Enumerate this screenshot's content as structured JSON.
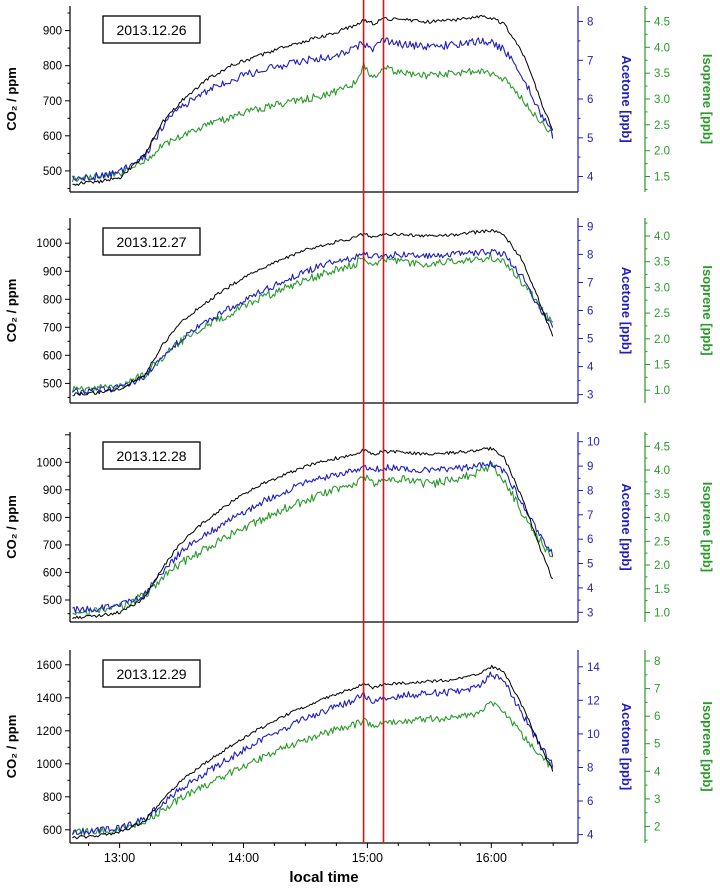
{
  "figure": {
    "xlabel": "local time",
    "x_domain": [
      12.6,
      16.7
    ],
    "x_ticks": [
      {
        "v": 13,
        "label": "13:00"
      },
      {
        "v": 14,
        "label": "14:00"
      },
      {
        "v": 15,
        "label": "15:00"
      },
      {
        "v": 16,
        "label": "16:00"
      }
    ],
    "red_lines_x": [
      14.97,
      15.13
    ],
    "colors": {
      "co2": "#000000",
      "acetone": "#1f1fc0",
      "isoprene": "#2a9a2a",
      "red_line": "#e01212"
    }
  },
  "chart_data": [
    {
      "type": "line",
      "date_label": "2013.12.26",
      "x_hours": [
        12.62,
        12.8,
        13.0,
        13.2,
        13.35,
        13.5,
        13.7,
        13.9,
        14.1,
        14.3,
        14.5,
        14.7,
        14.9,
        14.97,
        15.05,
        15.13,
        15.3,
        15.5,
        15.7,
        15.9,
        16.0,
        16.1,
        16.25,
        16.4,
        16.5
      ],
      "axes": {
        "co2": {
          "label": "CO₂ / ppm",
          "domain": [
            440,
            970
          ],
          "tick_start": 500,
          "tick_end": 900,
          "tick_step": 100,
          "decimals": 0
        },
        "acetone": {
          "label": "Acetone [ppb]",
          "domain": [
            3.6,
            8.4
          ],
          "tick_start": 4,
          "tick_end": 8,
          "tick_step": 1,
          "decimals": 0
        },
        "isoprene": {
          "label": "Isoprene [ppb]",
          "domain": [
            1.2,
            4.8
          ],
          "tick_start": 1.5,
          "tick_end": 4.5,
          "tick_step": 0.5,
          "decimals": 1
        }
      },
      "series": {
        "co2": {
          "values": [
            462,
            468,
            480,
            545,
            640,
            700,
            760,
            800,
            825,
            850,
            870,
            890,
            915,
            930,
            920,
            935,
            930,
            925,
            930,
            940,
            935,
            920,
            840,
            700,
            610
          ],
          "noise": 5
        },
        "acetone": {
          "values": [
            3.95,
            4.0,
            4.1,
            4.5,
            5.3,
            5.8,
            6.2,
            6.5,
            6.7,
            6.85,
            7.0,
            7.1,
            7.3,
            7.45,
            7.3,
            7.5,
            7.4,
            7.35,
            7.4,
            7.5,
            7.45,
            7.3,
            6.6,
            5.6,
            5.05
          ],
          "noise": 0.1
        },
        "isoprene": {
          "values": [
            1.45,
            1.5,
            1.55,
            1.8,
            2.1,
            2.3,
            2.5,
            2.65,
            2.8,
            2.9,
            3.0,
            3.1,
            3.3,
            3.65,
            3.4,
            3.6,
            3.5,
            3.45,
            3.5,
            3.55,
            3.5,
            3.4,
            3.0,
            2.55,
            2.3
          ],
          "noise": 0.07
        }
      }
    },
    {
      "type": "line",
      "date_label": "2013.12.27",
      "x_hours": [
        12.62,
        12.8,
        13.0,
        13.2,
        13.35,
        13.5,
        13.7,
        13.9,
        14.1,
        14.3,
        14.5,
        14.7,
        14.9,
        14.97,
        15.05,
        15.13,
        15.3,
        15.5,
        15.7,
        15.9,
        16.0,
        16.1,
        16.25,
        16.4,
        16.5
      ],
      "axes": {
        "co2": {
          "label": "CO₂ / ppm",
          "domain": [
            430,
            1090
          ],
          "tick_start": 500,
          "tick_end": 1000,
          "tick_step": 100,
          "decimals": 0
        },
        "acetone": {
          "label": "Acetone [ppb]",
          "domain": [
            2.7,
            9.3
          ],
          "tick_start": 3,
          "tick_end": 9,
          "tick_step": 1,
          "decimals": 0
        },
        "isoprene": {
          "label": "Isoprene [ppb]",
          "domain": [
            0.75,
            4.35
          ],
          "tick_start": 1.0,
          "tick_end": 4.0,
          "tick_step": 0.5,
          "decimals": 1
        }
      },
      "series": {
        "co2": {
          "values": [
            462,
            466,
            478,
            530,
            640,
            720,
            790,
            850,
            900,
            940,
            975,
            1000,
            1020,
            1035,
            1020,
            1030,
            1030,
            1025,
            1030,
            1040,
            1045,
            1030,
            940,
            780,
            660
          ],
          "noise": 6
        },
        "acetone": {
          "values": [
            3.1,
            3.15,
            3.25,
            3.6,
            4.4,
            5.0,
            5.6,
            6.1,
            6.6,
            7.0,
            7.4,
            7.7,
            7.9,
            8.05,
            7.9,
            8.0,
            8.0,
            7.95,
            8.0,
            8.05,
            8.1,
            8.0,
            7.2,
            6.0,
            5.35
          ],
          "noise": 0.12
        },
        "isoprene": {
          "values": [
            1.0,
            1.03,
            1.1,
            1.3,
            1.65,
            1.95,
            2.25,
            2.5,
            2.75,
            2.95,
            3.15,
            3.3,
            3.45,
            3.6,
            3.45,
            3.55,
            3.5,
            3.45,
            3.5,
            3.55,
            3.6,
            3.5,
            3.1,
            2.6,
            2.3
          ],
          "noise": 0.08
        }
      }
    },
    {
      "type": "line",
      "date_label": "2013.12.28",
      "x_hours": [
        12.62,
        12.8,
        13.0,
        13.2,
        13.35,
        13.5,
        13.7,
        13.9,
        14.1,
        14.3,
        14.5,
        14.7,
        14.9,
        14.97,
        15.05,
        15.13,
        15.3,
        15.5,
        15.7,
        15.9,
        16.0,
        16.1,
        16.25,
        16.4,
        16.5
      ],
      "axes": {
        "co2": {
          "label": "CO₂ / ppm",
          "domain": [
            420,
            1110
          ],
          "tick_start": 500,
          "tick_end": 1000,
          "tick_step": 100,
          "decimals": 0
        },
        "acetone": {
          "label": "Acetone [ppb]",
          "domain": [
            2.6,
            10.4
          ],
          "tick_start": 3,
          "tick_end": 10,
          "tick_step": 1,
          "decimals": 0
        },
        "isoprene": {
          "label": "Isoprene [ppb]",
          "domain": [
            0.8,
            4.8
          ],
          "tick_start": 1.0,
          "tick_end": 4.5,
          "tick_step": 0.5,
          "decimals": 1
        }
      },
      "series": {
        "co2": {
          "values": [
            435,
            440,
            455,
            505,
            620,
            710,
            790,
            855,
            910,
            950,
            985,
            1010,
            1030,
            1045,
            1030,
            1040,
            1035,
            1030,
            1035,
            1045,
            1050,
            1020,
            870,
            680,
            570
          ],
          "noise": 6
        },
        "acetone": {
          "values": [
            3.1,
            3.15,
            3.3,
            3.7,
            4.7,
            5.5,
            6.2,
            6.8,
            7.4,
            7.9,
            8.3,
            8.6,
            8.85,
            9.0,
            8.85,
            8.95,
            8.9,
            8.85,
            8.9,
            9.0,
            9.1,
            8.8,
            7.5,
            6.1,
            5.4
          ],
          "noise": 0.14
        },
        "isoprene": {
          "values": [
            1.0,
            1.03,
            1.12,
            1.35,
            1.75,
            2.05,
            2.35,
            2.65,
            2.9,
            3.15,
            3.35,
            3.55,
            3.7,
            3.9,
            3.7,
            3.85,
            3.8,
            3.7,
            3.8,
            3.95,
            4.1,
            3.8,
            3.1,
            2.5,
            2.1
          ],
          "noise": 0.09
        }
      }
    },
    {
      "type": "line",
      "date_label": "2013.12.29",
      "x_hours": [
        12.62,
        12.8,
        13.0,
        13.2,
        13.35,
        13.5,
        13.7,
        13.9,
        14.1,
        14.3,
        14.5,
        14.7,
        14.9,
        14.97,
        15.05,
        15.13,
        15.3,
        15.5,
        15.7,
        15.9,
        16.0,
        16.1,
        16.25,
        16.4,
        16.5
      ],
      "axes": {
        "co2": {
          "label": "CO₂ / ppm",
          "domain": [
            520,
            1690
          ],
          "tick_start": 600,
          "tick_end": 1600,
          "tick_step": 200,
          "decimals": 0
        },
        "acetone": {
          "label": "Acetone [ppb]",
          "domain": [
            3.5,
            15.0
          ],
          "tick_start": 4,
          "tick_end": 14,
          "tick_step": 2,
          "decimals": 0
        },
        "isoprene": {
          "label": "Isoprene [ppb]",
          "domain": [
            1.4,
            8.4
          ],
          "tick_start": 2,
          "tick_end": 8,
          "tick_step": 1,
          "decimals": 0
        }
      },
      "series": {
        "co2": {
          "values": [
            552,
            560,
            585,
            650,
            780,
            900,
            1010,
            1110,
            1200,
            1280,
            1350,
            1410,
            1460,
            1490,
            1460,
            1480,
            1490,
            1500,
            1510,
            1540,
            1590,
            1560,
            1350,
            1100,
            955
          ],
          "noise": 9
        },
        "acetone": {
          "values": [
            4.15,
            4.2,
            4.4,
            4.9,
            5.9,
            6.8,
            7.7,
            8.6,
            9.5,
            10.2,
            10.9,
            11.5,
            12.0,
            12.3,
            12.0,
            12.2,
            12.3,
            12.4,
            12.5,
            12.8,
            13.6,
            13.2,
            11.2,
            9.2,
            8.1
          ],
          "noise": 0.22
        },
        "isoprene": {
          "values": [
            1.8,
            1.83,
            1.9,
            2.15,
            2.6,
            3.05,
            3.5,
            3.95,
            4.4,
            4.8,
            5.15,
            5.45,
            5.7,
            5.85,
            5.6,
            5.8,
            5.85,
            5.9,
            5.95,
            6.1,
            6.5,
            6.2,
            5.3,
            4.5,
            4.1
          ],
          "noise": 0.13
        }
      }
    }
  ]
}
